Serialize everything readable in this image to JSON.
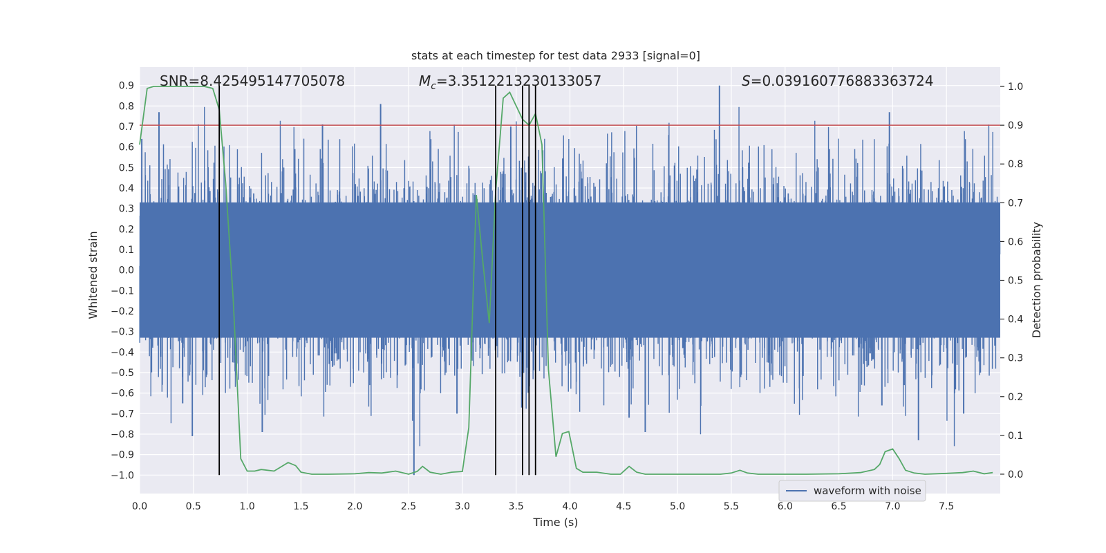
{
  "chart_data": {
    "type": "line",
    "title": "stats at each timestep for test data 2933 [signal=0]",
    "xlabel": "Time (s)",
    "ylabel_left": "Whitened strain",
    "ylabel_right": "Detection probability",
    "xlim": [
      0.0,
      8.0
    ],
    "ylim_left": [
      -1.09,
      0.99
    ],
    "ylim_right": [
      -0.05,
      1.05
    ],
    "x_ticks": [
      0.0,
      0.5,
      1.0,
      1.5,
      2.0,
      2.5,
      3.0,
      3.5,
      4.0,
      4.5,
      5.0,
      5.5,
      6.0,
      6.5,
      7.0,
      7.5
    ],
    "x_tick_labels": [
      "0.0",
      "0.5",
      "1.0",
      "1.5",
      "2.0",
      "2.5",
      "3.0",
      "3.5",
      "4.0",
      "4.5",
      "5.0",
      "5.5",
      "6.0",
      "6.5",
      "7.0",
      "7.5"
    ],
    "y_left_ticks": [
      -1.0,
      -0.9,
      -0.8,
      -0.7,
      -0.6,
      -0.5,
      -0.4,
      -0.3,
      -0.2,
      -0.1,
      0.0,
      0.1,
      0.2,
      0.3,
      0.4,
      0.5,
      0.6,
      0.7,
      0.8,
      0.9
    ],
    "y_left_tick_labels": [
      "−1.0",
      "−0.9",
      "−0.8",
      "−0.7",
      "−0.6",
      "−0.5",
      "−0.4",
      "−0.3",
      "−0.2",
      "−0.1",
      "0.0",
      "0.1",
      "0.2",
      "0.3",
      "0.4",
      "0.5",
      "0.6",
      "0.7",
      "0.8",
      "0.9"
    ],
    "y_right_ticks": [
      0.0,
      0.1,
      0.2,
      0.3,
      0.4,
      0.5,
      0.6,
      0.7,
      0.8,
      0.9,
      1.0
    ],
    "y_right_tick_labels": [
      "0.0",
      "0.1",
      "0.2",
      "0.3",
      "0.4",
      "0.5",
      "0.6",
      "0.7",
      "0.8",
      "0.9",
      "1.0"
    ],
    "grid": true,
    "annotations": {
      "snr": "SNR=8.425495147705078",
      "mc_symbol": "M",
      "mc_sub": "c",
      "mc_value": "=3.3512213230133057",
      "s_symbol": "S",
      "s_value": "=0.039160776883363724"
    },
    "threshold": {
      "value": 0.9,
      "axis": "right",
      "color": "#c44e52"
    },
    "detection_lines": {
      "x": [
        0.74,
        3.31,
        3.56,
        3.62,
        3.68
      ],
      "y_range_left": [
        -1.0,
        0.9
      ],
      "color": "#000000"
    },
    "waveform": {
      "name": "waveform with noise",
      "color": "#4c72b0",
      "core_range": [
        -0.33,
        0.33
      ],
      "noise_seed": 2933,
      "spikes": [
        {
          "x": 0.02,
          "y": 0.64
        },
        {
          "x": 0.18,
          "y": 0.77
        },
        {
          "x": 0.4,
          "y": -0.65
        },
        {
          "x": 0.49,
          "y": -0.81
        },
        {
          "x": 1.14,
          "y": -0.79
        },
        {
          "x": 1.7,
          "y": 0.71
        },
        {
          "x": 2.24,
          "y": 0.81
        },
        {
          "x": 2.55,
          "y": -1.0
        },
        {
          "x": 2.95,
          "y": -0.7
        },
        {
          "x": 3.45,
          "y": 0.7
        },
        {
          "x": 4.55,
          "y": -0.72
        },
        {
          "x": 4.7,
          "y": -0.79
        },
        {
          "x": 5.39,
          "y": 0.9
        },
        {
          "x": 6.9,
          "y": -0.66
        },
        {
          "x": 6.97,
          "y": 0.77
        },
        {
          "x": 7.24,
          "y": -0.83
        },
        {
          "x": 7.66,
          "y": -0.7
        }
      ]
    },
    "detection_probability": {
      "color": "#55a868",
      "x": [
        0.0,
        0.07,
        0.13,
        0.2,
        0.3,
        0.45,
        0.6,
        0.68,
        0.74,
        0.8,
        0.87,
        0.94,
        1.0,
        1.07,
        1.13,
        1.25,
        1.38,
        1.45,
        1.5,
        1.6,
        1.75,
        2.0,
        2.13,
        2.25,
        2.38,
        2.5,
        2.58,
        2.63,
        2.7,
        2.8,
        2.9,
        3.0,
        3.06,
        3.13,
        3.19,
        3.25,
        3.31,
        3.38,
        3.44,
        3.5,
        3.56,
        3.62,
        3.68,
        3.74,
        3.8,
        3.87,
        3.93,
        3.99,
        4.06,
        4.12,
        4.25,
        4.38,
        4.47,
        4.55,
        4.62,
        4.7,
        4.8,
        5.0,
        5.2,
        5.4,
        5.5,
        5.58,
        5.65,
        5.75,
        6.0,
        6.2,
        6.5,
        6.7,
        6.83,
        6.88,
        6.93,
        7.0,
        7.06,
        7.12,
        7.2,
        7.3,
        7.5,
        7.65,
        7.75,
        7.85,
        7.93
      ],
      "y": [
        0.85,
        0.995,
        1.0,
        1.0,
        1.0,
        1.0,
        1.0,
        0.995,
        0.94,
        0.75,
        0.45,
        0.04,
        0.008,
        0.008,
        0.012,
        0.008,
        0.03,
        0.022,
        0.005,
        0.0,
        0.0,
        0.001,
        0.004,
        0.003,
        0.008,
        0.0,
        0.007,
        0.02,
        0.005,
        0.0,
        0.005,
        0.007,
        0.12,
        0.72,
        0.55,
        0.39,
        0.73,
        0.97,
        0.985,
        0.95,
        0.915,
        0.9,
        0.93,
        0.85,
        0.27,
        0.045,
        0.105,
        0.11,
        0.015,
        0.005,
        0.005,
        0.0,
        0.0,
        0.02,
        0.005,
        0.0,
        0.0,
        0.0,
        0.0,
        0.0,
        0.003,
        0.01,
        0.003,
        0.0,
        0.0,
        0.0,
        0.001,
        0.004,
        0.012,
        0.025,
        0.058,
        0.065,
        0.04,
        0.01,
        0.003,
        0.0,
        0.002,
        0.004,
        0.008,
        0.001,
        0.004
      ]
    },
    "legend": {
      "entries": [
        "waveform with noise"
      ],
      "placement": "lower-right"
    }
  }
}
